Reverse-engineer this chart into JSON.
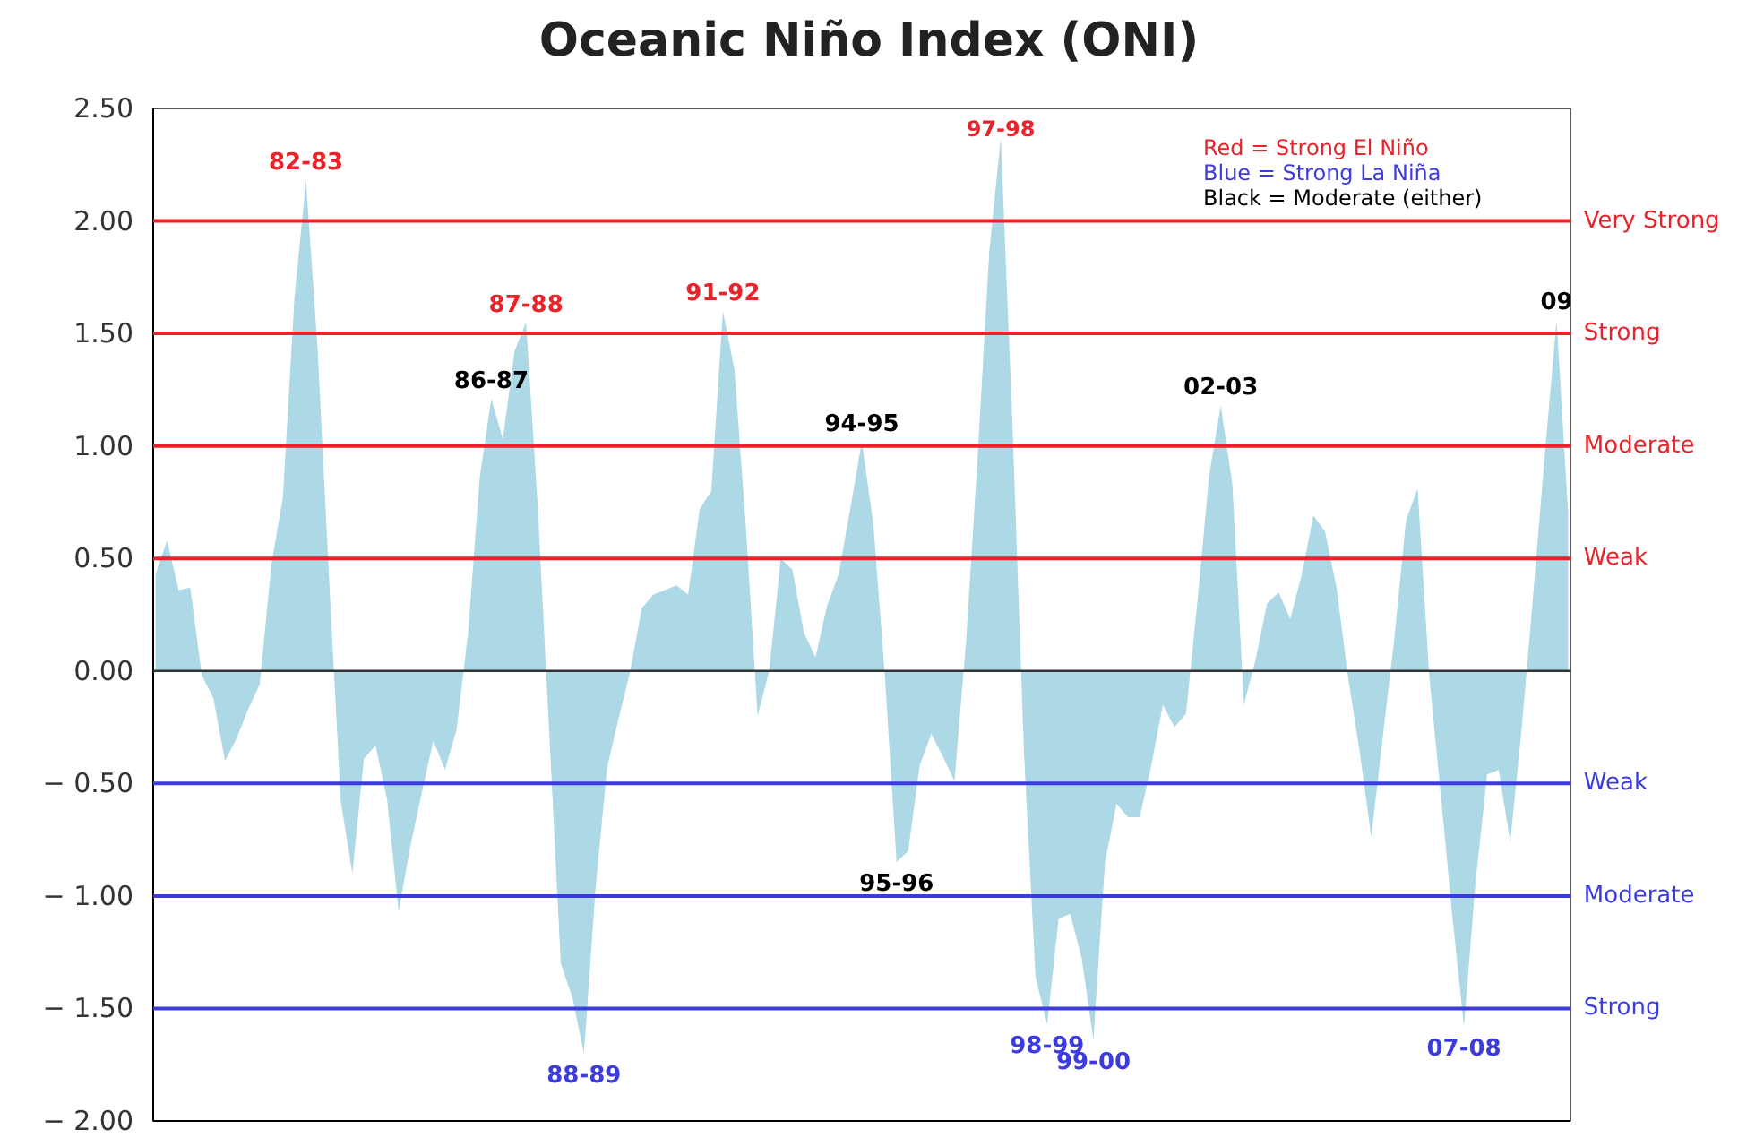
{
  "chart_data": {
    "type": "area",
    "title": "Oceanic Niño Index (ONI)",
    "categories": [
      null,
      null,
      null,
      null,
      null,
      null,
      null,
      null,
      null,
      null,
      null,
      null,
      null,
      null,
      null,
      null,
      null,
      null,
      null,
      null,
      null,
      null,
      null,
      null,
      null,
      null,
      null,
      null,
      null,
      null,
      null,
      null,
      null,
      null,
      null,
      null,
      null,
      null,
      null,
      null,
      null,
      null,
      null,
      null,
      null,
      null,
      null,
      null,
      null,
      null,
      null,
      null,
      null,
      null,
      null,
      null,
      null,
      null,
      null,
      null,
      null,
      null,
      null,
      null,
      null,
      null,
      null,
      null,
      null,
      null,
      null,
      null,
      null,
      null,
      null,
      null,
      null,
      null,
      null,
      null,
      null,
      null,
      null,
      null,
      null,
      null,
      null,
      null,
      null,
      null,
      null,
      null,
      null,
      null,
      null,
      null,
      null,
      null,
      null,
      null,
      null,
      null,
      null,
      null,
      null,
      null,
      null,
      null,
      null,
      null,
      null,
      null,
      null,
      null,
      null,
      null,
      null,
      null,
      null,
      null,
      null,
      null,
      null
    ],
    "series": [
      {
        "color": "#add8e6",
        "values": [
          0.43,
          0.58,
          0.36,
          0.37,
          -0.02,
          -0.12,
          -0.4,
          -0.3,
          -0.17,
          -0.06,
          0.47,
          0.77,
          1.66,
          2.18,
          1.43,
          0.4,
          -0.58,
          -0.9,
          -0.39,
          -0.33,
          -0.57,
          -1.07,
          -0.78,
          -0.54,
          -0.31,
          -0.44,
          -0.26,
          0.17,
          0.86,
          1.21,
          1.03,
          1.42,
          1.55,
          0.74,
          -0.27,
          -1.3,
          -1.45,
          -1.7,
          -0.97,
          -0.43,
          -0.21,
          0,
          0.28,
          0.34,
          0.36,
          0.38,
          0.34,
          0.72,
          0.8,
          1.6,
          1.34,
          0.63,
          -0.2,
          0,
          0.5,
          0.45,
          0.17,
          0.06,
          0.29,
          0.43,
          0.72,
          1.02,
          0.65,
          -0.03,
          -0.85,
          -0.8,
          -0.42,
          -0.28,
          -0.38,
          -0.49,
          0.13,
          0.95,
          1.86,
          2.37,
          1.11,
          -0.36,
          -1.36,
          -1.57,
          -1.1,
          -1.08,
          -1.28,
          -1.64,
          -0.85,
          -0.59,
          -0.65,
          -0.65,
          -0.42,
          -0.15,
          -0.25,
          -0.19,
          0.32,
          0.87,
          1.18,
          0.83,
          -0.15,
          0.05,
          0.3,
          0.35,
          0.23,
          0.43,
          0.69,
          0.62,
          0.37,
          -0.03,
          -0.36,
          -0.74,
          -0.29,
          0.15,
          0.67,
          0.81,
          -0.02,
          -0.55,
          -1.09,
          -1.58,
          -0.94,
          -0.46,
          -0.44,
          -0.76,
          -0.25,
          0.35,
          0.97,
          1.56,
          0.7
        ]
      }
    ],
    "ylim": [
      -2.0,
      2.5
    ],
    "yticks": [
      {
        "value": -2.0,
        "label": "− 2.00"
      },
      {
        "value": -1.5,
        "label": "− 1.50"
      },
      {
        "value": -1.0,
        "label": "− 1.00"
      },
      {
        "value": -0.5,
        "label": "− 0.50"
      },
      {
        "value": 0.0,
        "label": "0.00"
      },
      {
        "value": 0.5,
        "label": "0.50"
      },
      {
        "value": 1.0,
        "label": "1.00"
      },
      {
        "value": 1.5,
        "label": "1.50"
      },
      {
        "value": 2.0,
        "label": "2.00"
      },
      {
        "value": 2.5,
        "label": "2.50"
      }
    ],
    "ref_lines": [
      {
        "axis": "y",
        "value": 2.0,
        "label": "Very Strong",
        "color": "#e8232a"
      },
      {
        "axis": "y",
        "value": 1.5,
        "label": "Strong",
        "color": "#e8232a"
      },
      {
        "axis": "y",
        "value": 1.0,
        "label": "Moderate",
        "color": "#e8232a"
      },
      {
        "axis": "y",
        "value": 0.5,
        "label": "Weak",
        "color": "#e8232a"
      },
      {
        "axis": "y",
        "value": -0.5,
        "label": "Weak",
        "color": "#3b3be0"
      },
      {
        "axis": "y",
        "value": -1.0,
        "label": "Moderate",
        "color": "#3b3be0"
      },
      {
        "axis": "y",
        "value": -1.5,
        "label": "Strong",
        "color": "#3b3be0"
      }
    ],
    "annotations": [
      "Red = Strong  El Niño",
      "Blue = Strong  La Niña",
      "Black = Moderate  (either)",
      {
        "text": "82-83",
        "y": 2.18
      },
      {
        "text": "86-87",
        "y": 1.21
      },
      {
        "text": "87-88",
        "y": 1.55
      },
      {
        "text": "88-89",
        "y": -1.7
      },
      {
        "text": "91-92",
        "y": 1.6
      },
      {
        "text": "94-95",
        "y": 1.02
      },
      {
        "text": "95-96",
        "y": -0.85
      },
      {
        "text": "97-98",
        "y": 2.37
      },
      {
        "text": "98-99",
        "y": -1.57
      },
      {
        "text": "99-00",
        "y": -1.64
      },
      {
        "text": "02-03",
        "y": 1.18
      },
      {
        "text": "07-08",
        "y": -1.58
      },
      {
        "text": "09",
        "y": 1.56
      }
    ]
  }
}
